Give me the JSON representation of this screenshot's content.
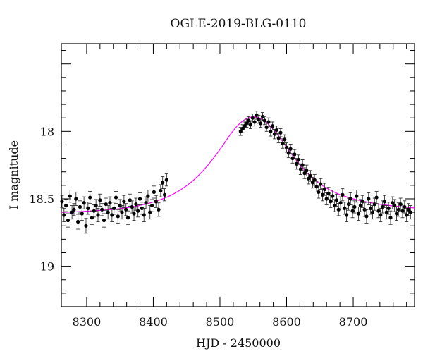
{
  "chart_data": {
    "type": "scatter",
    "title": "OGLE-2019-BLG-0110",
    "xlabel": "HJD - 2450000",
    "ylabel": "I magnitude",
    "xlim": [
      8262,
      8792
    ],
    "ylim": [
      19.3,
      17.35
    ],
    "y_inverted": true,
    "x_ticks": [
      8300,
      8400,
      8500,
      8600,
      8700
    ],
    "y_ticks": [
      18,
      18.5,
      19
    ],
    "x_tick_labels": [
      "8300",
      "8400",
      "8500",
      "8600",
      "8700"
    ],
    "y_tick_labels": [
      "18",
      "18.5",
      "19"
    ],
    "grid": false,
    "legend": "none",
    "colors": {
      "data": "#000000",
      "model": "#ff00ff"
    },
    "series": [
      {
        "kind": "data",
        "x": [
          8263,
          8266,
          8269,
          8272,
          8275,
          8278,
          8281,
          8284,
          8287,
          8290,
          8293,
          8296,
          8299,
          8302,
          8305,
          8308,
          8311,
          8314,
          8317,
          8320,
          8323,
          8326,
          8329,
          8332,
          8335,
          8338,
          8341,
          8344,
          8347,
          8350,
          8353,
          8356,
          8359,
          8362,
          8365,
          8368,
          8371,
          8374,
          8377,
          8380,
          8383,
          8386,
          8389,
          8392,
          8395,
          8398,
          8401,
          8404,
          8408,
          8411,
          8414,
          8417,
          8420,
          8531,
          8534,
          8537,
          8540,
          8543,
          8546,
          8549,
          8552,
          8555,
          8558,
          8561,
          8564,
          8567,
          8570,
          8573,
          8576,
          8579,
          8582,
          8585,
          8588,
          8591,
          8594,
          8597,
          8600,
          8603,
          8606,
          8609,
          8612,
          8615,
          8618,
          8621,
          8624,
          8627,
          8630,
          8633,
          8636,
          8639,
          8642,
          8645,
          8648,
          8651,
          8654,
          8657,
          8660,
          8663,
          8666,
          8669,
          8672,
          8675,
          8678,
          8681,
          8684,
          8687,
          8690,
          8693,
          8696,
          8699,
          8702,
          8705,
          8708,
          8711,
          8714,
          8717,
          8720,
          8723,
          8726,
          8729,
          8732,
          8735,
          8738,
          8741,
          8744,
          8747,
          8750,
          8753,
          8756,
          8759,
          8762,
          8765,
          8768,
          8771,
          8774,
          8777,
          8780,
          8783,
          8786
        ],
        "y": [
          18.52,
          18.62,
          18.55,
          18.66,
          18.48,
          18.6,
          18.58,
          18.5,
          18.67,
          18.56,
          18.61,
          18.53,
          18.7,
          18.57,
          18.49,
          18.64,
          18.59,
          18.55,
          18.62,
          18.51,
          18.58,
          18.66,
          18.54,
          18.6,
          18.53,
          18.62,
          18.57,
          18.49,
          18.63,
          18.55,
          18.6,
          18.52,
          18.58,
          18.64,
          18.51,
          18.56,
          18.61,
          18.54,
          18.59,
          18.5,
          18.57,
          18.62,
          18.53,
          18.48,
          18.6,
          18.55,
          18.45,
          18.52,
          18.58,
          18.44,
          18.38,
          18.47,
          18.36,
          18.0,
          17.98,
          17.96,
          17.94,
          17.92,
          17.95,
          17.9,
          17.93,
          17.88,
          17.91,
          17.94,
          17.89,
          17.92,
          17.97,
          17.93,
          18.0,
          17.96,
          18.02,
          17.99,
          18.05,
          18.01,
          18.09,
          18.06,
          18.12,
          18.16,
          18.13,
          18.2,
          18.17,
          18.24,
          18.21,
          18.28,
          18.25,
          18.31,
          18.29,
          18.35,
          18.33,
          18.38,
          18.36,
          18.41,
          18.45,
          18.39,
          18.47,
          18.43,
          18.5,
          18.46,
          18.52,
          18.48,
          18.55,
          18.51,
          18.58,
          18.53,
          18.47,
          18.57,
          18.62,
          18.54,
          18.5,
          18.59,
          18.56,
          18.48,
          18.61,
          18.55,
          18.52,
          18.58,
          18.63,
          18.5,
          18.57,
          18.6,
          18.54,
          18.49,
          18.59,
          18.62,
          18.56,
          18.52,
          18.6,
          18.57,
          18.64,
          18.53,
          18.55,
          18.61,
          18.58,
          18.54,
          18.59,
          18.56,
          18.62,
          18.58,
          18.6
        ],
        "yerr": [
          0.045,
          0.05,
          0.045,
          0.05,
          0.045,
          0.05,
          0.045,
          0.05,
          0.055,
          0.045,
          0.05,
          0.045,
          0.055,
          0.045,
          0.045,
          0.05,
          0.045,
          0.045,
          0.05,
          0.045,
          0.045,
          0.05,
          0.045,
          0.05,
          0.045,
          0.05,
          0.045,
          0.045,
          0.05,
          0.045,
          0.05,
          0.045,
          0.045,
          0.05,
          0.045,
          0.045,
          0.05,
          0.045,
          0.045,
          0.045,
          0.045,
          0.05,
          0.045,
          0.045,
          0.05,
          0.045,
          0.045,
          0.045,
          0.05,
          0.045,
          0.045,
          0.045,
          0.045,
          0.03,
          0.03,
          0.03,
          0.03,
          0.03,
          0.03,
          0.03,
          0.03,
          0.03,
          0.03,
          0.03,
          0.03,
          0.03,
          0.03,
          0.03,
          0.035,
          0.03,
          0.035,
          0.03,
          0.035,
          0.03,
          0.035,
          0.035,
          0.035,
          0.035,
          0.035,
          0.035,
          0.035,
          0.04,
          0.035,
          0.04,
          0.04,
          0.04,
          0.04,
          0.04,
          0.04,
          0.04,
          0.04,
          0.04,
          0.045,
          0.04,
          0.045,
          0.045,
          0.045,
          0.045,
          0.045,
          0.045,
          0.045,
          0.045,
          0.045,
          0.045,
          0.045,
          0.045,
          0.05,
          0.045,
          0.045,
          0.05,
          0.045,
          0.045,
          0.05,
          0.045,
          0.045,
          0.05,
          0.05,
          0.045,
          0.045,
          0.05,
          0.045,
          0.045,
          0.05,
          0.05,
          0.045,
          0.045,
          0.05,
          0.045,
          0.05,
          0.045,
          0.045,
          0.05,
          0.05,
          0.045,
          0.05,
          0.045,
          0.05,
          0.045,
          0.05
        ]
      },
      {
        "kind": "model",
        "x": [
          8262,
          8280,
          8300,
          8320,
          8340,
          8360,
          8380,
          8400,
          8420,
          8440,
          8460,
          8480,
          8500,
          8510,
          8520,
          8530,
          8540,
          8550,
          8560,
          8570,
          8580,
          8590,
          8600,
          8610,
          8620,
          8630,
          8640,
          8650,
          8660,
          8670,
          8680,
          8700,
          8720,
          8740,
          8760,
          8780,
          8792
        ],
        "y": [
          18.6,
          18.597,
          18.592,
          18.586,
          18.578,
          18.566,
          18.549,
          18.524,
          18.488,
          18.436,
          18.363,
          18.262,
          18.134,
          18.062,
          17.994,
          17.94,
          17.905,
          17.893,
          17.902,
          17.935,
          17.985,
          18.048,
          18.117,
          18.185,
          18.248,
          18.303,
          18.35,
          18.389,
          18.421,
          18.447,
          18.468,
          18.5,
          18.523,
          18.54,
          18.553,
          18.563,
          18.568
        ]
      }
    ]
  }
}
